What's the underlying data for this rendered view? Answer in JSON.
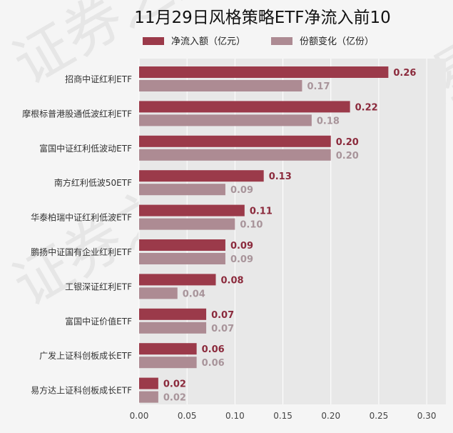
{
  "chart_data": {
    "type": "bar",
    "orientation": "horizontal",
    "title": "11月29日风格策略ETF净流入前10",
    "categories": [
      "招商中证红利ETF",
      "摩根标普港股通低波红利ETF",
      "富国中证红利低波动ETF",
      "南方红利低波50ETF",
      "华泰柏瑞中证红利低波ETF",
      "鹏扬中证国有企业红利ETF",
      "工银深证红利ETF",
      "富国中证价值ETF",
      "广发上证科创板成长ETF",
      "易方达上证科创板成长ETF"
    ],
    "series": [
      {
        "name": "净流入额（亿元）",
        "values": [
          0.26,
          0.22,
          0.2,
          0.13,
          0.11,
          0.09,
          0.08,
          0.07,
          0.06,
          0.02
        ]
      },
      {
        "name": "份额变化（亿份）",
        "values": [
          0.17,
          0.18,
          0.2,
          0.09,
          0.1,
          0.09,
          0.04,
          0.07,
          0.06,
          0.02
        ]
      }
    ],
    "x_ticks": [
      "0.00",
      "0.05",
      "0.10",
      "0.15",
      "0.20",
      "0.25",
      "0.30"
    ],
    "xlim": [
      0,
      0.32
    ],
    "grid": true,
    "legend": "top-center",
    "colors": [
      "#9b3a4a",
      "#ad8b93"
    ],
    "value_label_colors": [
      "#8b2a3c",
      "#a8949a"
    ]
  },
  "watermark": [
    "证券之星",
    "证券之星",
    "证券之星"
  ]
}
